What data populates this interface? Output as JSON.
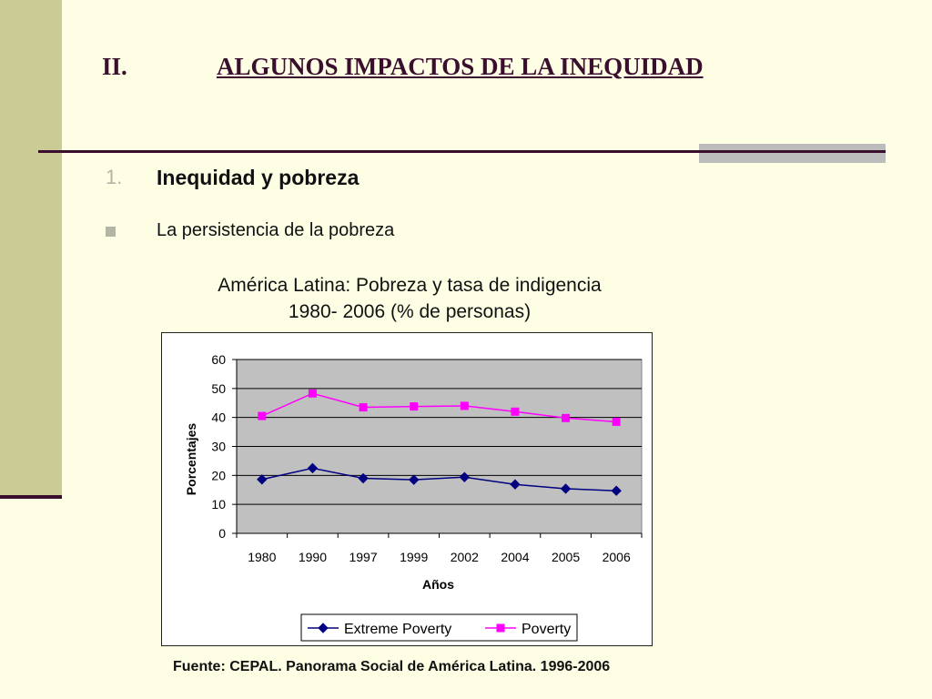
{
  "slide": {
    "section_number": "II.",
    "title": "ALGUNOS IMPACTOS DE LA INEQUIDAD",
    "subsection_number": "1.",
    "subsection_title": "Inequidad y pobreza",
    "bullet": "La persistencia de la pobreza",
    "source": "Fuente: CEPAL. Panorama Social de América Latina. 1996-2006"
  },
  "colors": {
    "background": "#fefee4",
    "band": "#cbcb95",
    "accent_dark": "#3a0f2e",
    "plot_area": "#c0c0c0"
  },
  "chart_data": {
    "type": "line",
    "title": "América Latina: Pobreza y tasa de indigencia",
    "subtitle": "1980- 2006 (% de personas)",
    "xlabel": "Años",
    "ylabel": "Porcentajes",
    "categories": [
      "1980",
      "1990",
      "1997",
      "1999",
      "2002",
      "2004",
      "2005",
      "2006"
    ],
    "ylim": [
      0,
      60
    ],
    "yticks": [
      0,
      10,
      20,
      30,
      40,
      50,
      60
    ],
    "grid": true,
    "legend_position": "bottom",
    "series": [
      {
        "name": "Extreme Poverty",
        "color": "#000080",
        "marker": "diamond",
        "values": [
          18.6,
          22.5,
          19.0,
          18.5,
          19.4,
          16.9,
          15.4,
          14.7
        ]
      },
      {
        "name": "Poverty",
        "color": "#ff00ff",
        "marker": "square",
        "values": [
          40.5,
          48.3,
          43.5,
          43.8,
          44.0,
          42.0,
          39.8,
          38.5
        ]
      }
    ]
  }
}
